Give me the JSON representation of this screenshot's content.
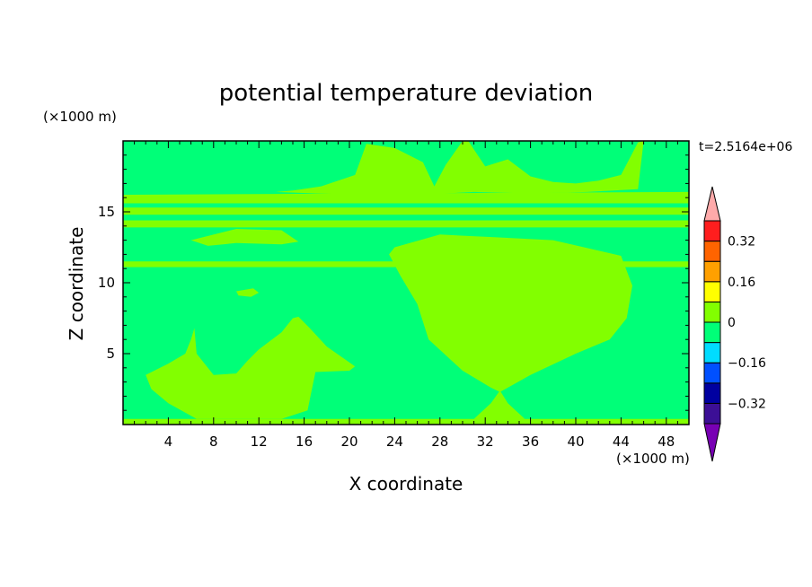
{
  "chart_data": {
    "type": "heatmap",
    "title": "potential temperature deviation",
    "xlabel": "X coordinate",
    "ylabel": "Z coordinate",
    "x_unit": "(×1000 m)",
    "y_unit": "(×1000 m)",
    "time_label": "t=2.5164e+06",
    "xlim": [
      0,
      50
    ],
    "ylim": [
      0,
      20
    ],
    "x_ticks": [
      4,
      8,
      12,
      16,
      20,
      24,
      28,
      32,
      36,
      40,
      44,
      48
    ],
    "y_ticks": [
      5,
      10,
      15
    ],
    "colorbar": {
      "levels": [
        -0.4,
        -0.32,
        -0.24,
        -0.16,
        -0.08,
        0,
        0.08,
        0.16,
        0.24,
        0.32,
        0.4
      ],
      "labels": [
        "-0.32",
        "-0.16",
        "0",
        "0.16",
        "0.32"
      ],
      "label_values": [
        -0.32,
        -0.16,
        0,
        0.16,
        0.32
      ],
      "colors": [
        "#3c0f96",
        "#0000a0",
        "#0050ff",
        "#00dcff",
        "#00ff78",
        "#82ff00",
        "#ffff00",
        "#ffa000",
        "#ff6400",
        "#ff1e1e"
      ],
      "under_color": "#7800b4",
      "over_color": "#ffaaaa"
    },
    "background_color": "#00ff78",
    "regions": [
      {
        "name": "upper-layer",
        "value": 0.04,
        "color": "#82ff00",
        "x": [
          0,
          50,
          50,
          0
        ],
        "z": [
          15.6,
          15.6,
          16.4,
          16.2
        ]
      },
      {
        "name": "upper-plume",
        "value": 0.04,
        "color": "#82ff00",
        "x": [
          13.5,
          15,
          17.5,
          20.5,
          21.5,
          24,
          26.5,
          27.5,
          28.5,
          30,
          30.5,
          32,
          34,
          36,
          38,
          40,
          42,
          44,
          45.5,
          46,
          45.5,
          41,
          36,
          31,
          26,
          21,
          17,
          13.5
        ],
        "z": [
          16.4,
          16.5,
          16.8,
          17.6,
          19.8,
          19.5,
          18.5,
          16.8,
          18.3,
          20,
          20,
          18.2,
          18.7,
          17.5,
          17.1,
          17.0,
          17.2,
          17.6,
          19.9,
          20,
          16.6,
          16.4,
          16.3,
          16.4,
          16.2,
          16.2,
          16.3,
          16.4
        ]
      },
      {
        "name": "band-15",
        "value": 0.04,
        "color": "#82ff00",
        "x": [
          0,
          50,
          50,
          0
        ],
        "z": [
          14.8,
          14.8,
          15.3,
          15.3
        ]
      },
      {
        "name": "band-14",
        "value": 0.04,
        "color": "#82ff00",
        "x": [
          0,
          50,
          50,
          0
        ],
        "z": [
          13.9,
          13.9,
          14.4,
          14.4
        ]
      },
      {
        "name": "mid-layer",
        "value": 0.04,
        "color": "#82ff00",
        "x": [
          6,
          10,
          14,
          15.5,
          14,
          10,
          7.5
        ],
        "z": [
          13.0,
          13.8,
          13.7,
          12.9,
          12.7,
          12.8,
          12.6
        ]
      },
      {
        "name": "band-11",
        "value": 0.04,
        "color": "#82ff00",
        "x": [
          0,
          50,
          50,
          0
        ],
        "z": [
          11.1,
          11.1,
          11.5,
          11.5
        ]
      },
      {
        "name": "right-plume",
        "value": 0.04,
        "color": "#82ff00",
        "x": [
          24,
          28,
          33,
          38,
          44,
          45,
          44.5,
          43,
          40,
          36,
          34,
          33.3,
          32.5,
          30,
          27,
          26,
          24.5,
          23.5
        ],
        "z": [
          12.5,
          13.4,
          13.2,
          13.0,
          11.9,
          9.8,
          7.5,
          6.0,
          5.0,
          3.5,
          2.6,
          2.3,
          2.6,
          3.8,
          6.0,
          8.5,
          10.5,
          12.0
        ]
      },
      {
        "name": "left-blob",
        "value": 0.04,
        "color": "#82ff00",
        "x": [
          2,
          4,
          5.5,
          6,
          6.3,
          6.5,
          8,
          10,
          11,
          12,
          14,
          15,
          15.5,
          16.5,
          18,
          20.5,
          20,
          17,
          16.3,
          14,
          10,
          6.5,
          4,
          2.5
        ],
        "z": [
          3.5,
          4.3,
          5.0,
          6.0,
          6.8,
          5.0,
          3.5,
          3.6,
          4.5,
          5.3,
          6.5,
          7.5,
          7.6,
          6.8,
          5.5,
          4.1,
          3.8,
          3.7,
          1.0,
          0.4,
          0.4,
          0.4,
          1.5,
          2.5
        ]
      },
      {
        "name": "bottom-dome",
        "value": 0.04,
        "color": "#82ff00",
        "x": [
          31,
          32.5,
          33.3,
          34,
          35.5,
          33.3
        ],
        "z": [
          0.4,
          1.5,
          2.4,
          1.5,
          0.4,
          0.3
        ]
      },
      {
        "name": "bottom-strip",
        "value": 0.04,
        "color": "#82ff00",
        "x": [
          0,
          50,
          50,
          0
        ],
        "z": [
          0,
          0,
          0.4,
          0.4
        ]
      },
      {
        "name": "small-spot",
        "value": 0.04,
        "color": "#82ff00",
        "x": [
          10,
          11.5,
          12,
          11.3,
          10.2
        ],
        "z": [
          9.4,
          9.6,
          9.3,
          9.0,
          9.1
        ]
      }
    ]
  }
}
